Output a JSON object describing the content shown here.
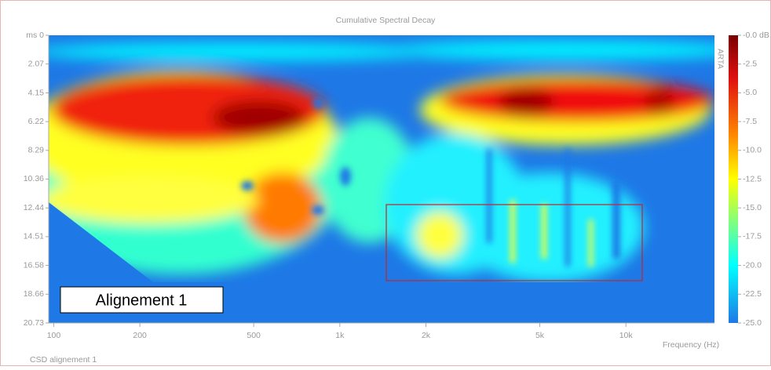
{
  "chart_data": {
    "type": "heatmap",
    "title": "Cumulative Spectral Decay",
    "xlabel": "Frequency (Hz)",
    "xscale": "log",
    "xlim": [
      96,
      20400
    ],
    "xticks": [
      100,
      200,
      500,
      {
        "value": 1000,
        "label": "1k"
      },
      {
        "value": 2000,
        "label": "2k"
      },
      {
        "value": 5000,
        "label": "5k"
      },
      {
        "value": 10000,
        "label": "10k"
      }
    ],
    "ylim": [
      0,
      20.73
    ],
    "y_inverted": true,
    "yticks": [
      {
        "value": 0,
        "label": "ms 0"
      },
      2.07,
      4.15,
      6.22,
      8.29,
      10.36,
      12.44,
      14.51,
      16.58,
      18.66,
      20.73
    ],
    "clim": [
      -25,
      0
    ],
    "cticks": [
      {
        "value": 0,
        "label": "-0.0 dB"
      },
      -2.5,
      {
        "value": -5,
        "label": "-5.0"
      },
      -7.5,
      {
        "value": -10,
        "label": "-10.0"
      },
      -12.5,
      {
        "value": -15,
        "label": "-15.0"
      },
      -17.5,
      {
        "value": -20,
        "label": "-20.0"
      },
      -22.5,
      {
        "value": -25,
        "label": "-25.0"
      }
    ],
    "watermark": "ARTA",
    "annotation": "Alignement 1",
    "footer": "CSD alignement 1"
  }
}
